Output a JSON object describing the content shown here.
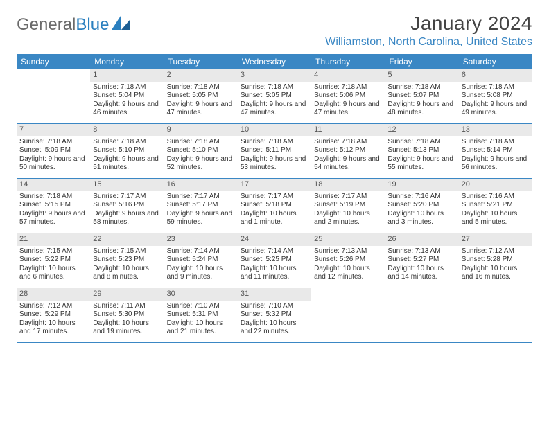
{
  "logo": {
    "text_a": "General",
    "text_b": "Blue"
  },
  "title": "January 2024",
  "location": "Williamston, North Carolina, United States",
  "colors": {
    "accent": "#3a87c4",
    "daynum_bg": "#e9e9e9",
    "text": "#333333",
    "logo_gray": "#6a6a6a"
  },
  "day_headers": [
    "Sunday",
    "Monday",
    "Tuesday",
    "Wednesday",
    "Thursday",
    "Friday",
    "Saturday"
  ],
  "weeks": [
    [
      {
        "n": "",
        "lines": []
      },
      {
        "n": "1",
        "lines": [
          "Sunrise: 7:18 AM",
          "Sunset: 5:04 PM",
          "Daylight: 9 hours and 46 minutes."
        ]
      },
      {
        "n": "2",
        "lines": [
          "Sunrise: 7:18 AM",
          "Sunset: 5:05 PM",
          "Daylight: 9 hours and 47 minutes."
        ]
      },
      {
        "n": "3",
        "lines": [
          "Sunrise: 7:18 AM",
          "Sunset: 5:05 PM",
          "Daylight: 9 hours and 47 minutes."
        ]
      },
      {
        "n": "4",
        "lines": [
          "Sunrise: 7:18 AM",
          "Sunset: 5:06 PM",
          "Daylight: 9 hours and 47 minutes."
        ]
      },
      {
        "n": "5",
        "lines": [
          "Sunrise: 7:18 AM",
          "Sunset: 5:07 PM",
          "Daylight: 9 hours and 48 minutes."
        ]
      },
      {
        "n": "6",
        "lines": [
          "Sunrise: 7:18 AM",
          "Sunset: 5:08 PM",
          "Daylight: 9 hours and 49 minutes."
        ]
      }
    ],
    [
      {
        "n": "7",
        "lines": [
          "Sunrise: 7:18 AM",
          "Sunset: 5:09 PM",
          "Daylight: 9 hours and 50 minutes."
        ]
      },
      {
        "n": "8",
        "lines": [
          "Sunrise: 7:18 AM",
          "Sunset: 5:10 PM",
          "Daylight: 9 hours and 51 minutes."
        ]
      },
      {
        "n": "9",
        "lines": [
          "Sunrise: 7:18 AM",
          "Sunset: 5:10 PM",
          "Daylight: 9 hours and 52 minutes."
        ]
      },
      {
        "n": "10",
        "lines": [
          "Sunrise: 7:18 AM",
          "Sunset: 5:11 PM",
          "Daylight: 9 hours and 53 minutes."
        ]
      },
      {
        "n": "11",
        "lines": [
          "Sunrise: 7:18 AM",
          "Sunset: 5:12 PM",
          "Daylight: 9 hours and 54 minutes."
        ]
      },
      {
        "n": "12",
        "lines": [
          "Sunrise: 7:18 AM",
          "Sunset: 5:13 PM",
          "Daylight: 9 hours and 55 minutes."
        ]
      },
      {
        "n": "13",
        "lines": [
          "Sunrise: 7:18 AM",
          "Sunset: 5:14 PM",
          "Daylight: 9 hours and 56 minutes."
        ]
      }
    ],
    [
      {
        "n": "14",
        "lines": [
          "Sunrise: 7:18 AM",
          "Sunset: 5:15 PM",
          "Daylight: 9 hours and 57 minutes."
        ]
      },
      {
        "n": "15",
        "lines": [
          "Sunrise: 7:17 AM",
          "Sunset: 5:16 PM",
          "Daylight: 9 hours and 58 minutes."
        ]
      },
      {
        "n": "16",
        "lines": [
          "Sunrise: 7:17 AM",
          "Sunset: 5:17 PM",
          "Daylight: 9 hours and 59 minutes."
        ]
      },
      {
        "n": "17",
        "lines": [
          "Sunrise: 7:17 AM",
          "Sunset: 5:18 PM",
          "Daylight: 10 hours and 1 minute."
        ]
      },
      {
        "n": "18",
        "lines": [
          "Sunrise: 7:17 AM",
          "Sunset: 5:19 PM",
          "Daylight: 10 hours and 2 minutes."
        ]
      },
      {
        "n": "19",
        "lines": [
          "Sunrise: 7:16 AM",
          "Sunset: 5:20 PM",
          "Daylight: 10 hours and 3 minutes."
        ]
      },
      {
        "n": "20",
        "lines": [
          "Sunrise: 7:16 AM",
          "Sunset: 5:21 PM",
          "Daylight: 10 hours and 5 minutes."
        ]
      }
    ],
    [
      {
        "n": "21",
        "lines": [
          "Sunrise: 7:15 AM",
          "Sunset: 5:22 PM",
          "Daylight: 10 hours and 6 minutes."
        ]
      },
      {
        "n": "22",
        "lines": [
          "Sunrise: 7:15 AM",
          "Sunset: 5:23 PM",
          "Daylight: 10 hours and 8 minutes."
        ]
      },
      {
        "n": "23",
        "lines": [
          "Sunrise: 7:14 AM",
          "Sunset: 5:24 PM",
          "Daylight: 10 hours and 9 minutes."
        ]
      },
      {
        "n": "24",
        "lines": [
          "Sunrise: 7:14 AM",
          "Sunset: 5:25 PM",
          "Daylight: 10 hours and 11 minutes."
        ]
      },
      {
        "n": "25",
        "lines": [
          "Sunrise: 7:13 AM",
          "Sunset: 5:26 PM",
          "Daylight: 10 hours and 12 minutes."
        ]
      },
      {
        "n": "26",
        "lines": [
          "Sunrise: 7:13 AM",
          "Sunset: 5:27 PM",
          "Daylight: 10 hours and 14 minutes."
        ]
      },
      {
        "n": "27",
        "lines": [
          "Sunrise: 7:12 AM",
          "Sunset: 5:28 PM",
          "Daylight: 10 hours and 16 minutes."
        ]
      }
    ],
    [
      {
        "n": "28",
        "lines": [
          "Sunrise: 7:12 AM",
          "Sunset: 5:29 PM",
          "Daylight: 10 hours and 17 minutes."
        ]
      },
      {
        "n": "29",
        "lines": [
          "Sunrise: 7:11 AM",
          "Sunset: 5:30 PM",
          "Daylight: 10 hours and 19 minutes."
        ]
      },
      {
        "n": "30",
        "lines": [
          "Sunrise: 7:10 AM",
          "Sunset: 5:31 PM",
          "Daylight: 10 hours and 21 minutes."
        ]
      },
      {
        "n": "31",
        "lines": [
          "Sunrise: 7:10 AM",
          "Sunset: 5:32 PM",
          "Daylight: 10 hours and 22 minutes."
        ]
      },
      {
        "n": "",
        "lines": []
      },
      {
        "n": "",
        "lines": []
      },
      {
        "n": "",
        "lines": []
      }
    ]
  ]
}
